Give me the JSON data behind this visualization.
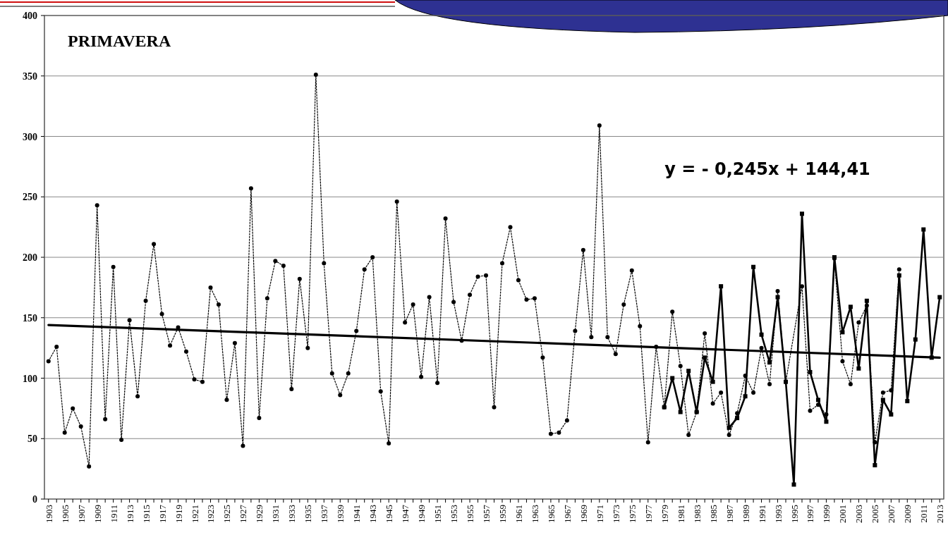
{
  "chart_data": {
    "type": "line",
    "title": "PRIMAVERA",
    "annotations": [
      "y = - 0,245x + 144,41"
    ],
    "xlim": [
      1902.5,
      2013.5
    ],
    "xticks": [
      1903,
      1905,
      1907,
      1909,
      1911,
      1913,
      1915,
      1917,
      1919,
      1921,
      1923,
      1925,
      1927,
      1929,
      1931,
      1933,
      1935,
      1937,
      1939,
      1941,
      1943,
      1945,
      1947,
      1949,
      1951,
      1953,
      1955,
      1957,
      1959,
      1961,
      1963,
      1965,
      1967,
      1969,
      1971,
      1973,
      1975,
      1977,
      1979,
      1981,
      1983,
      1985,
      1987,
      1989,
      1991,
      1993,
      1995,
      1997,
      1999,
      2001,
      2003,
      2005,
      2007,
      2009,
      2011,
      2013
    ],
    "ylim": [
      0,
      400
    ],
    "yticks": [
      0,
      50,
      100,
      150,
      200,
      250,
      300,
      350,
      400
    ],
    "grid": "y",
    "marker": "circle",
    "series": [
      {
        "color": "#000000",
        "line_style": "dotted",
        "x": [
          1903,
          1904,
          1905,
          1906,
          1907,
          1908,
          1909,
          1910,
          1911,
          1912,
          1913,
          1914,
          1915,
          1916,
          1917,
          1918,
          1919,
          1920,
          1921,
          1922,
          1923,
          1924,
          1925,
          1926,
          1927,
          1928,
          1929,
          1930,
          1931,
          1932,
          1933,
          1934,
          1935,
          1936,
          1937,
          1938,
          1939,
          1940,
          1941,
          1942,
          1943,
          1944,
          1945,
          1946,
          1947,
          1948,
          1949,
          1950,
          1951,
          1952,
          1953,
          1954,
          1955,
          1956,
          1957,
          1958,
          1959,
          1960,
          1961,
          1962,
          1963,
          1964,
          1965,
          1966,
          1967,
          1968,
          1969,
          1970,
          1971,
          1972,
          1973,
          1974,
          1975,
          1976,
          1977,
          1978,
          1979,
          1980,
          1981,
          1982,
          1983,
          1984,
          1985,
          1986,
          1987,
          1988,
          1989,
          1990,
          1991,
          1992,
          1993,
          1994,
          1995,
          1996,
          1997,
          1998,
          1999,
          2000,
          2001,
          2002,
          2003,
          2004,
          2005,
          2006,
          2007,
          2008
        ],
        "values": [
          114,
          126,
          55,
          75,
          60,
          27,
          243,
          66,
          192,
          49,
          148,
          85,
          164,
          211,
          153,
          127,
          142,
          122,
          99,
          97,
          175,
          161,
          82,
          129,
          44,
          257,
          67,
          166,
          197,
          193,
          91,
          182,
          125,
          351,
          195,
          104,
          86,
          104,
          139,
          190,
          200,
          89,
          46,
          246,
          146,
          161,
          101,
          167,
          96,
          232,
          163,
          131,
          169,
          184,
          185,
          76,
          195,
          225,
          181,
          165,
          166,
          117,
          54,
          55,
          65,
          139,
          206,
          134,
          309,
          134,
          120,
          161,
          189,
          143,
          47,
          126,
          76,
          155,
          110,
          53,
          72,
          137,
          79,
          88,
          53,
          71,
          102,
          88,
          125,
          95,
          172,
          97,
          null,
          176,
          73,
          78,
          70,
          199,
          114,
          95,
          146,
          160,
          47,
          88,
          90,
          190
        ]
      },
      {
        "color": "#000000",
        "line_style": "solid",
        "marker": "square",
        "x": [
          1979,
          1980,
          1981,
          1982,
          1983,
          1984,
          1985,
          1986,
          1987,
          1988,
          1989,
          1990,
          1991,
          1992,
          1993,
          1994,
          1995,
          1996,
          1997,
          1998,
          1999,
          2000,
          2001,
          2002,
          2003,
          2004,
          2005,
          2006,
          2007,
          2008,
          2009,
          2010,
          2011,
          2012,
          2013
        ],
        "values": [
          76,
          100,
          72,
          106,
          72,
          117,
          97,
          176,
          59,
          67,
          85,
          192,
          136,
          113,
          167,
          97,
          12,
          236,
          105,
          82,
          64,
          200,
          138,
          159,
          108,
          164,
          28,
          82,
          70,
          185,
          81,
          132,
          223,
          117,
          167
        ]
      },
      {
        "color": "#000000",
        "line_style": "solid",
        "marker": "none",
        "x": [
          1903,
          2013
        ],
        "values": [
          144,
          117
        ]
      }
    ]
  }
}
